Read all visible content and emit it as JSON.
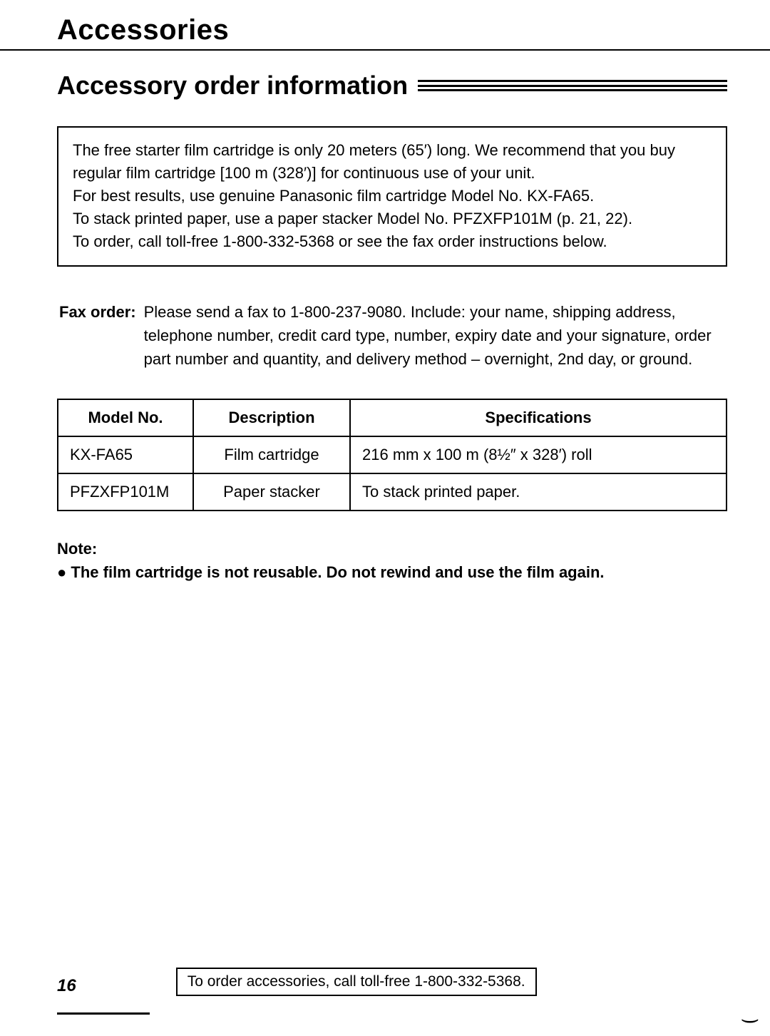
{
  "chapter_title": "Accessories",
  "section_title": "Accessory order information",
  "info_box_lines": [
    "The free starter film cartridge is only 20 meters (65′) long. We recommend that you buy regular film cartridge [100 m (328′)] for continuous use of your unit.",
    "For best results, use genuine Panasonic film cartridge Model No. KX-FA65.",
    "To stack printed paper, use a paper stacker Model No. PFZXFP101M (p. 21, 22).",
    "To order, call toll-free 1-800-332-5368 or see the fax order instructions below."
  ],
  "fax_order": {
    "label": "Fax order:",
    "body": "Please send a fax to 1-800-237-9080. Include: your name, shipping address, telephone number, credit card type, number, expiry date and your signature, order part number and quantity, and delivery method – overnight, 2nd day, or ground."
  },
  "table": {
    "columns": [
      "Model No.",
      "Description",
      "Specifications"
    ],
    "rows": [
      [
        "KX-FA65",
        "Film cartridge",
        "216 mm x 100 m (8½″ x 328′) roll"
      ],
      [
        "PFZXFP101M",
        "Paper stacker",
        "To stack printed paper."
      ]
    ]
  },
  "note": {
    "lead": "Note:",
    "bullet": "● The film cartridge is not reusable. Do not rewind and use the film again."
  },
  "footer": {
    "page_number": "16",
    "order_text": "To order accessories, call toll-free 1-800-332-5368."
  },
  "colors": {
    "text": "#000000",
    "background": "#ffffff",
    "rule": "#000000"
  }
}
